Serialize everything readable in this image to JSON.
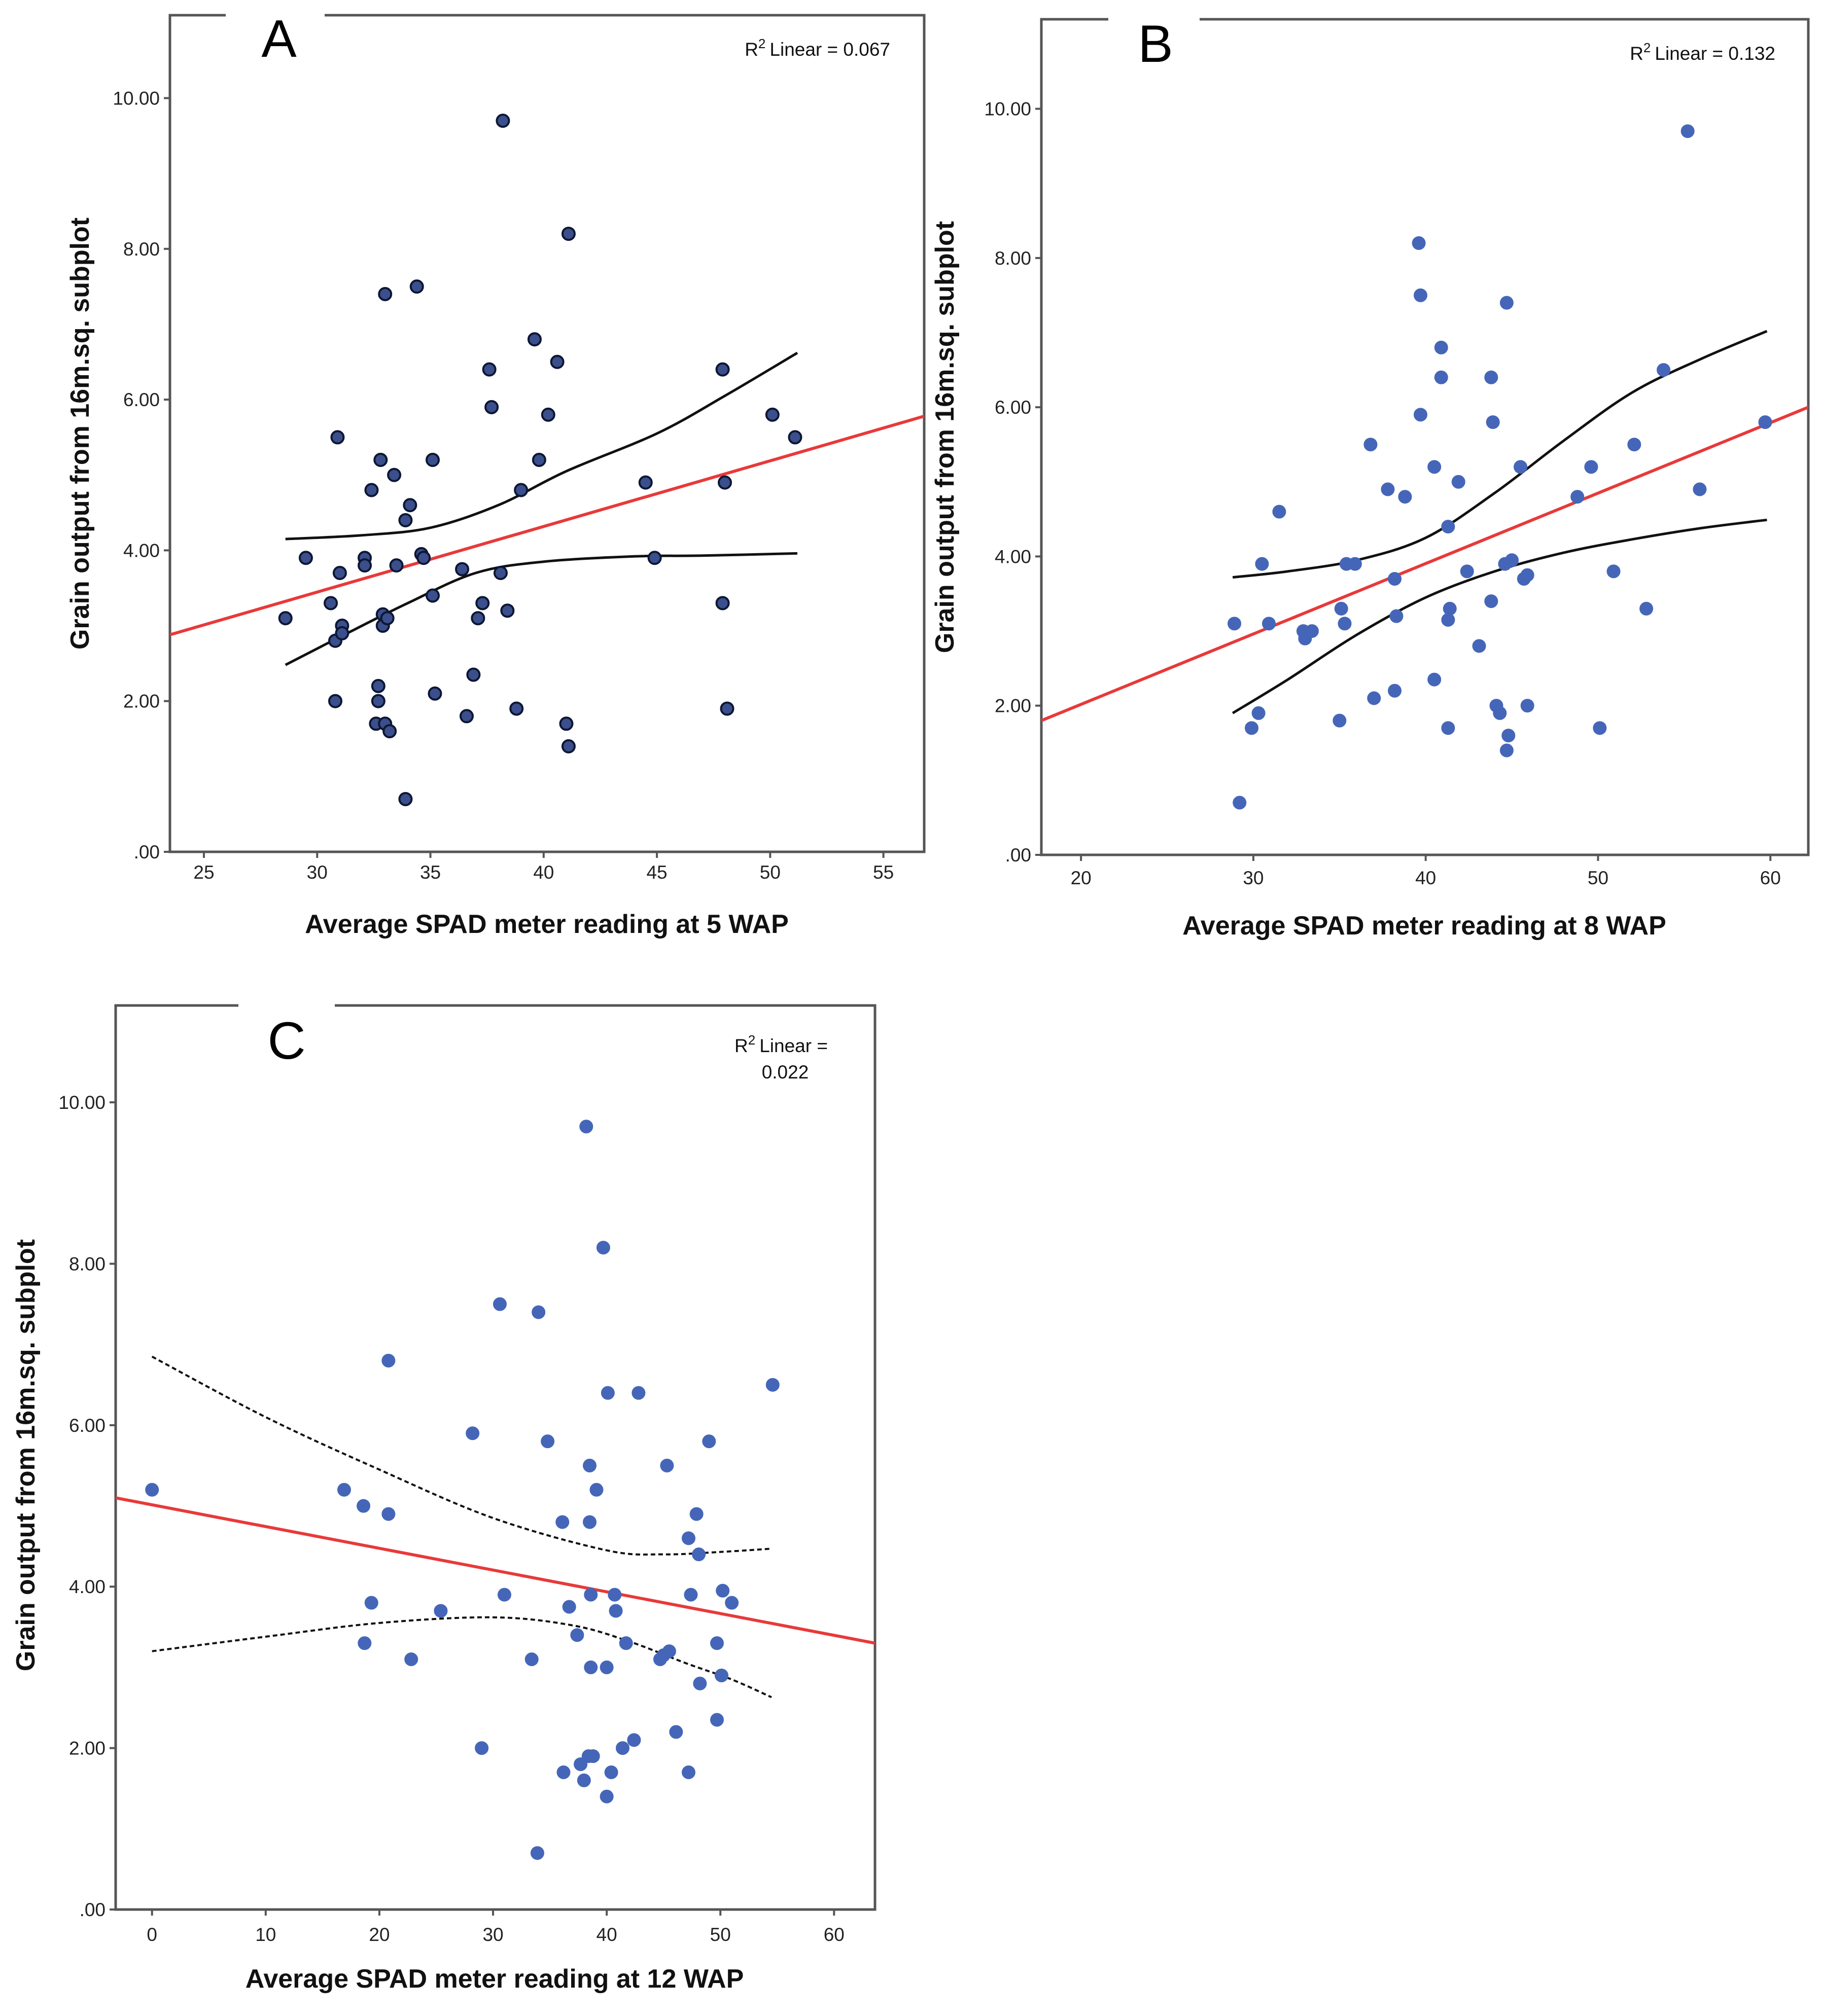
{
  "figure": {
    "colors": {
      "frame": "#555555",
      "fit_line": "#e8393a",
      "ci_line": "#111111",
      "point_dark_fill": "#3a4f8c",
      "point_dark_stroke": "#0d1733",
      "point_blue_fill": "#4566b8",
      "background": "#ffffff"
    }
  },
  "chart_data": [
    {
      "id": "A",
      "type": "scatter",
      "panel_label": "A",
      "xlabel": "Average SPAD meter reading at 5 WAP",
      "ylabel": "Grain output from 16m.sq. subplot",
      "r2_label": "Linear = 0.067",
      "r2_symbol": "R",
      "r2_exp": "2",
      "xlim": [
        23.5,
        56.8
      ],
      "ylim": [
        0,
        11.1
      ],
      "xticks": [
        25,
        30,
        35,
        40,
        45,
        50,
        55
      ],
      "yticks": [
        0,
        2,
        4,
        6,
        8,
        10
      ],
      "ytick_labels": [
        ".00",
        "2.00",
        "4.00",
        "6.00",
        "8.00",
        "10.00"
      ],
      "point_style": "dark",
      "ci_dashed": false,
      "fit_line": [
        [
          23.5,
          2.88
        ],
        [
          56.8,
          5.78
        ]
      ],
      "ci_upper": [
        [
          28.6,
          4.15
        ],
        [
          32,
          4.2
        ],
        [
          35,
          4.3
        ],
        [
          38,
          4.6
        ],
        [
          41,
          5.05
        ],
        [
          45,
          5.55
        ],
        [
          48,
          6.05
        ],
        [
          51.2,
          6.62
        ]
      ],
      "ci_lower": [
        [
          28.6,
          2.48
        ],
        [
          31,
          2.85
        ],
        [
          34,
          3.3
        ],
        [
          37,
          3.7
        ],
        [
          40,
          3.85
        ],
        [
          44,
          3.92
        ],
        [
          47,
          3.93
        ],
        [
          51.2,
          3.96
        ]
      ],
      "points": [
        [
          28.6,
          3.1
        ],
        [
          29.5,
          3.9
        ],
        [
          30.6,
          3.3
        ],
        [
          30.8,
          2.8
        ],
        [
          30.8,
          2.0
        ],
        [
          30.9,
          5.5
        ],
        [
          31.0,
          3.7
        ],
        [
          31.1,
          3.0
        ],
        [
          31.1,
          2.9
        ],
        [
          32.1,
          3.9
        ],
        [
          32.1,
          3.8
        ],
        [
          32.4,
          4.8
        ],
        [
          32.6,
          1.7
        ],
        [
          32.7,
          2.2
        ],
        [
          32.7,
          2.0
        ],
        [
          32.8,
          5.2
        ],
        [
          32.9,
          3.15
        ],
        [
          32.9,
          3.0
        ],
        [
          33.0,
          7.4
        ],
        [
          33.0,
          1.7
        ],
        [
          33.1,
          3.1
        ],
        [
          33.2,
          1.6
        ],
        [
          33.4,
          5.0
        ],
        [
          33.5,
          3.8
        ],
        [
          33.9,
          0.7
        ],
        [
          33.9,
          4.4
        ],
        [
          34.1,
          4.6
        ],
        [
          34.4,
          7.5
        ],
        [
          34.6,
          3.95
        ],
        [
          34.7,
          3.9
        ],
        [
          35.1,
          3.4
        ],
        [
          35.1,
          5.2
        ],
        [
          35.2,
          2.1
        ],
        [
          36.4,
          3.75
        ],
        [
          36.6,
          1.8
        ],
        [
          36.9,
          2.35
        ],
        [
          37.1,
          3.1
        ],
        [
          37.3,
          3.3
        ],
        [
          37.6,
          6.4
        ],
        [
          37.7,
          5.9
        ],
        [
          38.1,
          3.7
        ],
        [
          38.2,
          9.7
        ],
        [
          38.4,
          3.2
        ],
        [
          38.8,
          1.9
        ],
        [
          39.0,
          4.8
        ],
        [
          39.6,
          6.8
        ],
        [
          39.8,
          5.2
        ],
        [
          40.2,
          5.8
        ],
        [
          40.6,
          6.5
        ],
        [
          41.0,
          1.7
        ],
        [
          41.1,
          1.4
        ],
        [
          41.1,
          8.2
        ],
        [
          44.5,
          4.9
        ],
        [
          44.9,
          3.9
        ],
        [
          47.9,
          6.4
        ],
        [
          47.9,
          3.3
        ],
        [
          48.0,
          4.9
        ],
        [
          48.1,
          1.9
        ],
        [
          50.1,
          5.8
        ],
        [
          51.1,
          5.5
        ]
      ]
    },
    {
      "id": "B",
      "type": "scatter",
      "panel_label": "B",
      "xlabel": "Average SPAD meter reading at 8 WAP",
      "ylabel": "Grain output from 16m.sq. subplot",
      "r2_label": "Linear = 0.132",
      "r2_symbol": "R",
      "r2_exp": "2",
      "xlim": [
        17.7,
        62.2
      ],
      "ylim": [
        0,
        11.2
      ],
      "xticks": [
        20,
        30,
        40,
        50,
        60
      ],
      "yticks": [
        0,
        2,
        4,
        6,
        8,
        10
      ],
      "ytick_labels": [
        ".00",
        "2.00",
        "4.00",
        "6.00",
        "8.00",
        "10.00"
      ],
      "point_style": "blue",
      "ci_dashed": false,
      "fit_line": [
        [
          17.7,
          1.8
        ],
        [
          62.2,
          6.0
        ]
      ],
      "ci_upper": [
        [
          28.8,
          3.72
        ],
        [
          32,
          3.8
        ],
        [
          36,
          3.95
        ],
        [
          40,
          4.25
        ],
        [
          44,
          4.85
        ],
        [
          48,
          5.55
        ],
        [
          52,
          6.2
        ],
        [
          56,
          6.65
        ],
        [
          59.8,
          7.02
        ]
      ],
      "ci_lower": [
        [
          28.8,
          1.9
        ],
        [
          32,
          2.35
        ],
        [
          36,
          2.95
        ],
        [
          40,
          3.45
        ],
        [
          44,
          3.8
        ],
        [
          48,
          4.05
        ],
        [
          52,
          4.23
        ],
        [
          56,
          4.38
        ],
        [
          59.8,
          4.49
        ]
      ],
      "points": [
        [
          28.9,
          3.1
        ],
        [
          29.2,
          0.7
        ],
        [
          29.9,
          1.7
        ],
        [
          30.3,
          1.9
        ],
        [
          30.5,
          3.9
        ],
        [
          30.9,
          3.1
        ],
        [
          31.5,
          4.6
        ],
        [
          32.9,
          3.0
        ],
        [
          33.0,
          2.9
        ],
        [
          33.4,
          3.0
        ],
        [
          35.0,
          1.8
        ],
        [
          35.1,
          3.3
        ],
        [
          35.3,
          3.1
        ],
        [
          35.4,
          3.9
        ],
        [
          35.9,
          3.9
        ],
        [
          36.8,
          5.5
        ],
        [
          37.0,
          2.1
        ],
        [
          37.8,
          4.9
        ],
        [
          38.2,
          3.7
        ],
        [
          38.2,
          2.2
        ],
        [
          38.3,
          3.2
        ],
        [
          38.8,
          4.8
        ],
        [
          39.6,
          8.2
        ],
        [
          39.7,
          7.5
        ],
        [
          39.7,
          5.9
        ],
        [
          40.5,
          5.2
        ],
        [
          40.5,
          2.35
        ],
        [
          40.9,
          6.8
        ],
        [
          40.9,
          6.4
        ],
        [
          41.3,
          4.4
        ],
        [
          41.3,
          3.15
        ],
        [
          41.3,
          1.7
        ],
        [
          41.4,
          3.3
        ],
        [
          41.9,
          5.0
        ],
        [
          42.4,
          3.8
        ],
        [
          43.1,
          2.8
        ],
        [
          43.8,
          6.4
        ],
        [
          43.8,
          3.4
        ],
        [
          43.9,
          5.8
        ],
        [
          44.1,
          2.0
        ],
        [
          44.3,
          1.9
        ],
        [
          44.6,
          3.9
        ],
        [
          44.7,
          7.4
        ],
        [
          44.7,
          1.4
        ],
        [
          44.8,
          1.6
        ],
        [
          45.0,
          3.95
        ],
        [
          45.5,
          5.2
        ],
        [
          45.7,
          3.7
        ],
        [
          45.9,
          3.75
        ],
        [
          45.9,
          2.0
        ],
        [
          48.8,
          4.8
        ],
        [
          49.6,
          5.2
        ],
        [
          50.1,
          1.7
        ],
        [
          50.9,
          3.8
        ],
        [
          52.1,
          5.5
        ],
        [
          52.8,
          3.3
        ],
        [
          53.8,
          6.5
        ],
        [
          55.2,
          9.7
        ],
        [
          55.9,
          4.9
        ],
        [
          59.7,
          5.8
        ]
      ]
    },
    {
      "id": "C",
      "type": "scatter",
      "panel_label": "C",
      "xlabel": "Average SPAD meter reading at 12 WAP",
      "ylabel": "Grain output from 16m.sq. subplot",
      "r2_label": "Linear =",
      "r2_value": "0.022",
      "r2_symbol": "R",
      "r2_exp": "2",
      "xlim": [
        -3.2,
        63.6
      ],
      "ylim": [
        0,
        11.2
      ],
      "xticks": [
        0,
        10,
        20,
        30,
        40,
        50,
        60
      ],
      "yticks": [
        0,
        2,
        4,
        6,
        8,
        10
      ],
      "ytick_labels": [
        ".00",
        "2.00",
        "4.00",
        "6.00",
        "8.00",
        "10.00"
      ],
      "point_style": "blue",
      "ci_dashed": true,
      "fit_line": [
        [
          -3.2,
          5.1
        ],
        [
          63.6,
          3.3
        ]
      ],
      "ci_upper": [
        [
          0,
          6.85
        ],
        [
          10,
          6.1
        ],
        [
          20,
          5.45
        ],
        [
          30,
          4.85
        ],
        [
          40,
          4.45
        ],
        [
          45,
          4.4
        ],
        [
          50,
          4.43
        ],
        [
          54.5,
          4.47
        ]
      ],
      "ci_lower": [
        [
          0,
          3.2
        ],
        [
          10,
          3.38
        ],
        [
          20,
          3.55
        ],
        [
          30,
          3.62
        ],
        [
          37,
          3.52
        ],
        [
          42,
          3.32
        ],
        [
          47,
          3.05
        ],
        [
          51,
          2.85
        ],
        [
          54.5,
          2.63
        ]
      ],
      "points": [
        [
          0.0,
          5.2
        ],
        [
          16.9,
          5.2
        ],
        [
          18.6,
          5.0
        ],
        [
          18.7,
          3.3
        ],
        [
          19.3,
          3.8
        ],
        [
          20.8,
          4.9
        ],
        [
          20.8,
          6.8
        ],
        [
          22.8,
          3.1
        ],
        [
          25.4,
          3.7
        ],
        [
          28.2,
          5.9
        ],
        [
          29.0,
          2.0
        ],
        [
          30.6,
          7.5
        ],
        [
          31.0,
          3.9
        ],
        [
          33.4,
          3.1
        ],
        [
          33.9,
          0.7
        ],
        [
          34.0,
          7.4
        ],
        [
          34.8,
          5.8
        ],
        [
          36.1,
          4.8
        ],
        [
          36.2,
          1.7
        ],
        [
          36.7,
          3.75
        ],
        [
          37.4,
          3.4
        ],
        [
          37.7,
          1.8
        ],
        [
          38.0,
          1.6
        ],
        [
          38.2,
          9.7
        ],
        [
          38.4,
          1.9
        ],
        [
          38.5,
          5.5
        ],
        [
          38.5,
          4.8
        ],
        [
          38.6,
          3.9
        ],
        [
          38.6,
          3.0
        ],
        [
          38.8,
          1.9
        ],
        [
          39.1,
          5.2
        ],
        [
          39.7,
          8.2
        ],
        [
          40.0,
          3.0
        ],
        [
          40.1,
          6.4
        ],
        [
          40.0,
          1.4
        ],
        [
          40.4,
          1.7
        ],
        [
          40.7,
          3.9
        ],
        [
          40.8,
          3.7
        ],
        [
          41.4,
          2.0
        ],
        [
          41.7,
          3.3
        ],
        [
          42.4,
          2.1
        ],
        [
          42.8,
          6.4
        ],
        [
          44.7,
          3.1
        ],
        [
          45.0,
          3.15
        ],
        [
          45.3,
          5.5
        ],
        [
          45.5,
          3.2
        ],
        [
          46.1,
          2.2
        ],
        [
          47.2,
          1.7
        ],
        [
          47.2,
          4.6
        ],
        [
          47.4,
          3.9
        ],
        [
          47.9,
          4.9
        ],
        [
          48.1,
          4.4
        ],
        [
          48.2,
          2.8
        ],
        [
          49.0,
          5.8
        ],
        [
          49.7,
          3.3
        ],
        [
          49.7,
          2.35
        ],
        [
          50.1,
          2.9
        ],
        [
          50.2,
          3.95
        ],
        [
          51.0,
          3.8
        ],
        [
          54.6,
          6.5
        ]
      ]
    }
  ]
}
